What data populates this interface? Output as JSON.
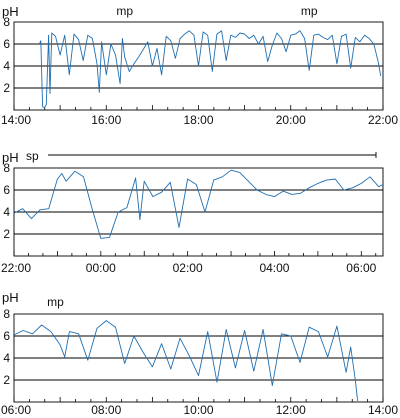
{
  "chart_data": [
    {
      "type": "line",
      "ylabel": "pH",
      "ylim": [
        0,
        8
      ],
      "yticks": [
        2,
        4,
        6,
        8
      ],
      "grid": "horizontal at 2, 4, 6",
      "xrange_hours": [
        14,
        22
      ],
      "xtick_labels": [
        "14:00",
        "16:00",
        "18:00",
        "20:00",
        "22:00"
      ],
      "annotations": [
        {
          "text": "mp",
          "at_hour": 16.4
        },
        {
          "text": "mp",
          "at_hour": 20.4
        }
      ],
      "series": [
        {
          "color": "#1f6fb2",
          "x": [
            14.55,
            14.58,
            14.62,
            14.66,
            14.7,
            14.75,
            14.78,
            14.82,
            14.9,
            15.0,
            15.1,
            15.2,
            15.3,
            15.4,
            15.5,
            15.6,
            15.7,
            15.8,
            15.85,
            15.9,
            16.0,
            16.1,
            16.2,
            16.3,
            16.35,
            16.4,
            16.5,
            16.6,
            16.7,
            16.8,
            16.9,
            17.0,
            17.1,
            17.2,
            17.3,
            17.4,
            17.5,
            17.6,
            17.7,
            17.8,
            17.9,
            18.0,
            18.1,
            18.2,
            18.3,
            18.4,
            18.5,
            18.6,
            18.7,
            18.8,
            18.9,
            19.0,
            19.1,
            19.2,
            19.3,
            19.4,
            19.5,
            19.6,
            19.7,
            19.8,
            19.9,
            20.0,
            20.1,
            20.2,
            20.3,
            20.4,
            20.5,
            20.6,
            20.7,
            20.8,
            20.9,
            21.0,
            21.1,
            21.2,
            21.3,
            21.4,
            21.5,
            21.6,
            21.7,
            21.8,
            21.9,
            21.95
          ],
          "y": [
            6.0,
            6.3,
            0.3,
            0.2,
            0.5,
            6.8,
            1.5,
            7.0,
            6.7,
            5.0,
            6.8,
            3.2,
            6.9,
            6.4,
            4.5,
            6.8,
            6.5,
            4.2,
            1.6,
            6.2,
            3.2,
            6.0,
            5.0,
            2.4,
            6.5,
            4.8,
            3.5,
            4.2,
            4.8,
            5.5,
            6.2,
            4.0,
            5.6,
            3.2,
            6.7,
            6.3,
            4.7,
            6.5,
            6.9,
            7.2,
            6.8,
            4.0,
            7.1,
            6.8,
            3.5,
            6.9,
            7.2,
            4.5,
            6.8,
            6.6,
            7.0,
            6.9,
            6.5,
            6.8,
            6.0,
            6.7,
            4.4,
            5.9,
            7.0,
            6.5,
            5.3,
            6.8,
            6.9,
            7.2,
            6.5,
            3.6,
            6.8,
            6.9,
            6.6,
            6.4,
            6.8,
            4.2,
            6.7,
            6.9,
            3.8,
            6.6,
            6.2,
            6.8,
            6.5,
            6.0,
            4.3,
            3.1
          ]
        }
      ]
    },
    {
      "type": "line",
      "ylabel": "pH",
      "ylim": [
        0,
        8
      ],
      "yticks": [
        2,
        4,
        6,
        8
      ],
      "grid": "horizontal at 2, 4, 6",
      "xrange_hours": [
        22,
        30.5
      ],
      "xtick_labels": [
        "22:00",
        "00:00",
        "02:00",
        "04:00",
        "06:00"
      ],
      "annotations": [
        {
          "text": "sp",
          "at_hour": 22.1
        }
      ],
      "series": [
        {
          "color": "#1f6fb2",
          "x": [
            22.0,
            22.2,
            22.4,
            22.6,
            22.8,
            23.0,
            23.1,
            23.2,
            23.4,
            23.6,
            23.8,
            24.0,
            24.2,
            24.4,
            24.6,
            24.8,
            24.9,
            25.0,
            25.2,
            25.4,
            25.6,
            25.8,
            26.0,
            26.2,
            26.4,
            26.6,
            26.8,
            27.0,
            27.2,
            27.4,
            27.6,
            27.8,
            28.0,
            28.2,
            28.4,
            28.6,
            28.8,
            29.0,
            29.2,
            29.4,
            29.6,
            29.8,
            30.0,
            30.2,
            30.4,
            30.5
          ],
          "y": [
            3.9,
            4.3,
            3.4,
            4.2,
            4.3,
            7.0,
            7.5,
            6.8,
            7.7,
            7.2,
            4.3,
            1.6,
            1.7,
            4.0,
            4.4,
            7.1,
            3.3,
            6.8,
            5.4,
            5.8,
            6.7,
            2.6,
            7.0,
            6.5,
            4.0,
            6.9,
            7.2,
            7.8,
            7.6,
            6.8,
            6.0,
            5.6,
            5.4,
            5.9,
            5.6,
            5.7,
            6.2,
            6.6,
            6.9,
            7.0,
            6.0,
            6.2,
            6.6,
            7.2,
            6.3,
            6.5
          ]
        }
      ]
    },
    {
      "type": "line",
      "ylabel": "pH",
      "ylim": [
        0,
        8
      ],
      "yticks": [
        2,
        4,
        6,
        8
      ],
      "grid": "horizontal at 2, 4, 6",
      "xrange_hours": [
        6,
        14
      ],
      "xtick_labels": [
        "06:00",
        "08:00",
        "10:00",
        "12:00",
        "14:00"
      ],
      "annotations": [
        {
          "text": "mp",
          "at_hour": 6.9
        }
      ],
      "series": [
        {
          "color": "#1f6fb2",
          "x": [
            6.0,
            6.2,
            6.4,
            6.6,
            6.8,
            7.0,
            7.1,
            7.2,
            7.4,
            7.6,
            7.8,
            8.0,
            8.2,
            8.4,
            8.6,
            8.8,
            9.0,
            9.2,
            9.4,
            9.6,
            9.8,
            10.0,
            10.2,
            10.4,
            10.6,
            10.8,
            11.0,
            11.2,
            11.4,
            11.6,
            11.8,
            12.0,
            12.2,
            12.4,
            12.6,
            12.8,
            13.0,
            13.2,
            13.3,
            13.4,
            13.45
          ],
          "y": [
            6.1,
            6.5,
            6.2,
            7.0,
            6.4,
            5.2,
            4.1,
            6.4,
            6.2,
            3.8,
            6.7,
            7.4,
            6.8,
            3.5,
            6.0,
            4.5,
            3.2,
            5.3,
            3.0,
            5.8,
            4.2,
            2.4,
            6.4,
            1.8,
            6.6,
            3.1,
            6.5,
            2.8,
            6.6,
            1.5,
            6.2,
            6.0,
            3.6,
            6.8,
            6.4,
            4.1,
            6.9,
            2.7,
            5.0,
            2.0,
            0.1
          ]
        }
      ]
    }
  ]
}
